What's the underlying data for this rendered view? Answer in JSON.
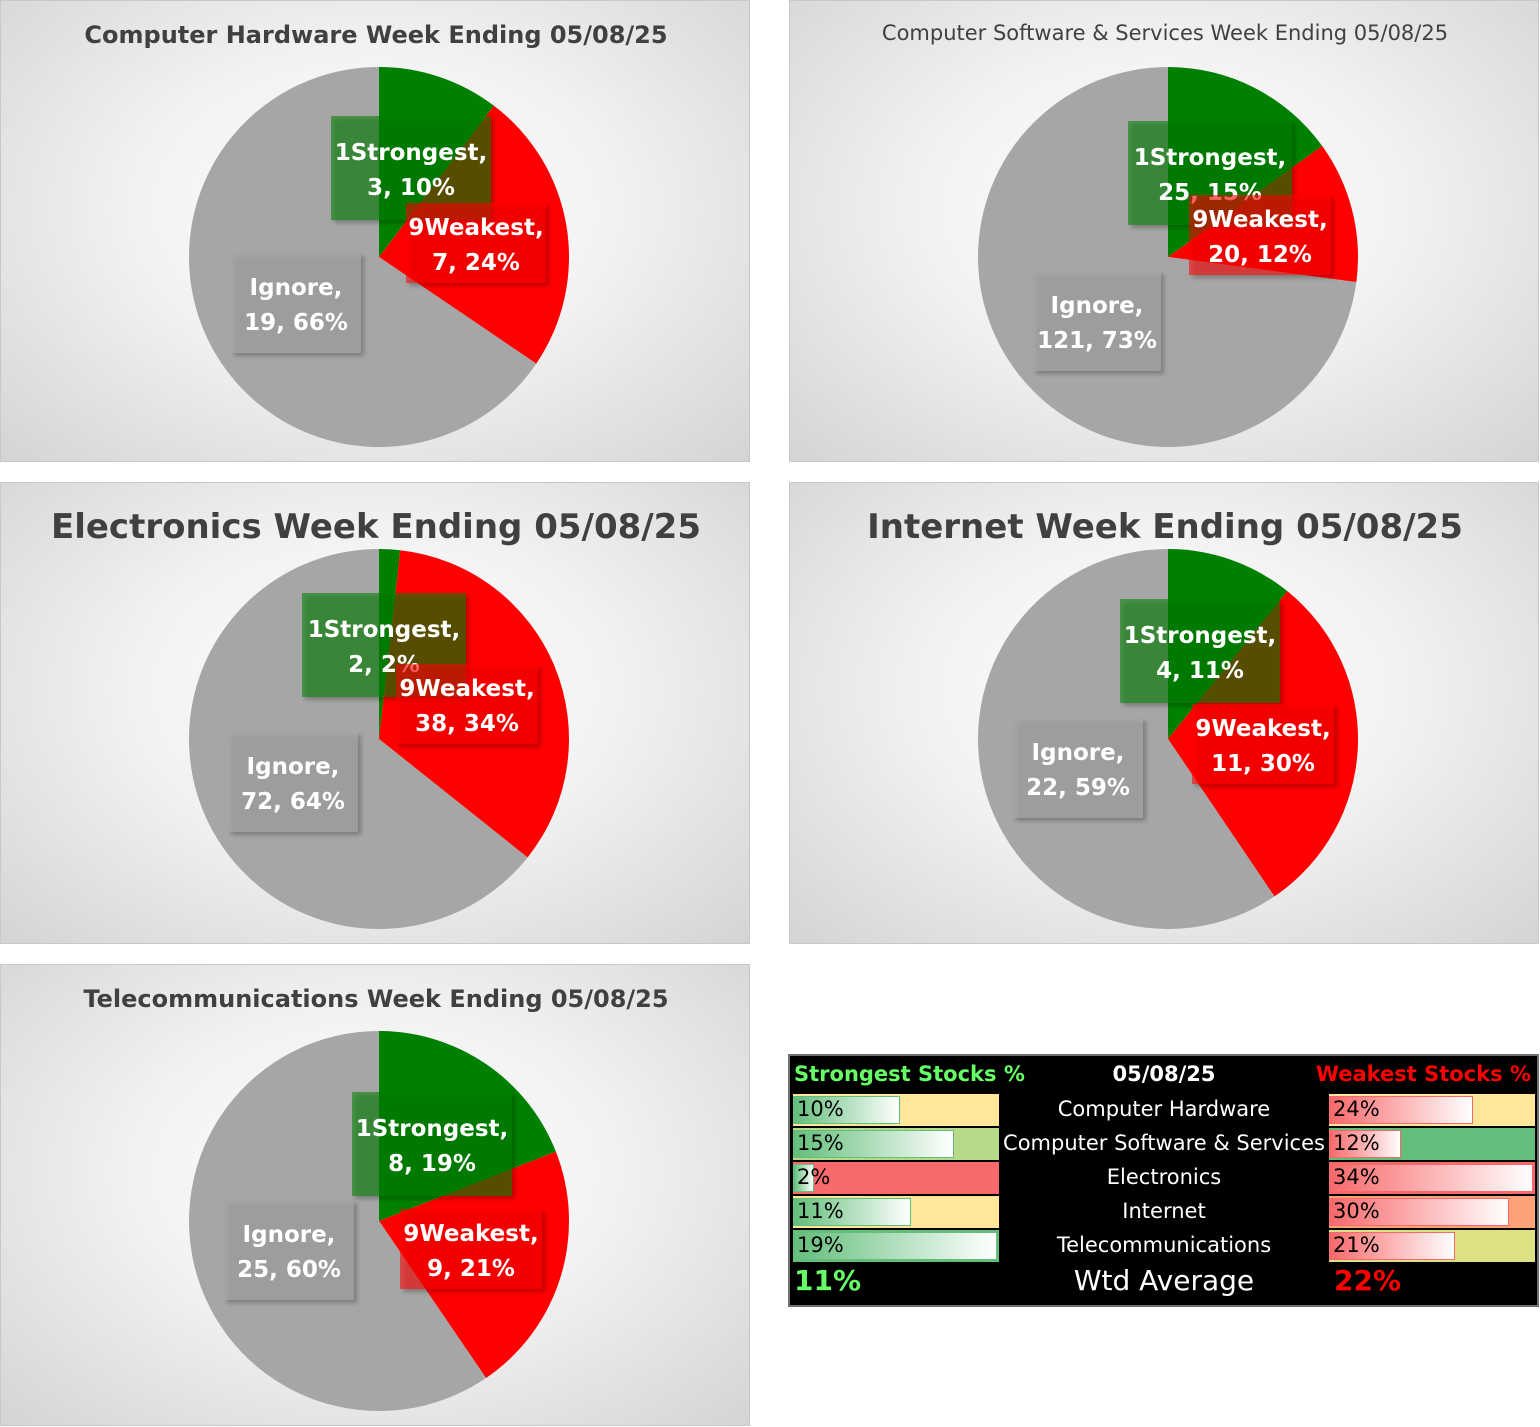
{
  "chart_data": [
    {
      "type": "pie",
      "title": "Computer Hardware Week Ending 05/08/25",
      "slices": [
        {
          "name": "1Strongest",
          "value": 3,
          "percent": "10%",
          "color": "#008000"
        },
        {
          "name": "9Weakest",
          "value": 7,
          "percent": "24%",
          "color": "#ff0000"
        },
        {
          "name": "Ignore",
          "value": 19,
          "percent": "66%",
          "color": "#a6a6a6"
        }
      ]
    },
    {
      "type": "pie",
      "title": "Computer Software & Services Week Ending 05/08/25",
      "slices": [
        {
          "name": "1Strongest",
          "value": 25,
          "percent": "15%",
          "color": "#008000"
        },
        {
          "name": "9Weakest",
          "value": 20,
          "percent": "12%",
          "color": "#ff0000"
        },
        {
          "name": "Ignore",
          "value": 121,
          "percent": "73%",
          "color": "#a6a6a6"
        }
      ]
    },
    {
      "type": "pie",
      "title": "Electronics Week Ending 05/08/25",
      "slices": [
        {
          "name": "1Strongest",
          "value": 2,
          "percent": "2%",
          "color": "#008000"
        },
        {
          "name": "9Weakest",
          "value": 38,
          "percent": "34%",
          "color": "#ff0000"
        },
        {
          "name": "Ignore",
          "value": 72,
          "percent": "64%",
          "color": "#a6a6a6"
        }
      ]
    },
    {
      "type": "pie",
      "title": "Internet Week Ending 05/08/25",
      "slices": [
        {
          "name": "1Strongest",
          "value": 4,
          "percent": "11%",
          "color": "#008000"
        },
        {
          "name": "9Weakest",
          "value": 11,
          "percent": "30%",
          "color": "#ff0000"
        },
        {
          "name": "Ignore",
          "value": 22,
          "percent": "59%",
          "color": "#a6a6a6"
        }
      ]
    },
    {
      "type": "pie",
      "title": "Telecommunications Week Ending 05/08/25",
      "slices": [
        {
          "name": "1Strongest",
          "value": 8,
          "percent": "19%",
          "color": "#008000"
        },
        {
          "name": "9Weakest",
          "value": 9,
          "percent": "21%",
          "color": "#ff0000"
        },
        {
          "name": "Ignore",
          "value": 25,
          "percent": "60%",
          "color": "#a6a6a6"
        }
      ]
    },
    {
      "type": "table",
      "header": {
        "strongest": "Strongest Stocks %",
        "date": "05/08/25",
        "weakest": "Weakest Stocks %"
      },
      "rows": [
        {
          "name": "Computer Hardware",
          "strongest": "10%",
          "strongest_value": 0.1,
          "weakest": "24%",
          "weakest_value": 0.24,
          "strongest_fill": "#ffe699",
          "weakest_fill": "#ffe699"
        },
        {
          "name": "Computer Software & Services",
          "strongest": "15%",
          "strongest_value": 0.15,
          "weakest": "12%",
          "weakest_value": 0.12,
          "strongest_fill": "#b6d98a",
          "weakest_fill": "#63be7b"
        },
        {
          "name": "Electronics",
          "strongest": "2%",
          "strongest_value": 0.02,
          "weakest": "34%",
          "weakest_value": 0.34,
          "strongest_fill": "#f8696b",
          "weakest_fill": "#f8696b"
        },
        {
          "name": "Internet",
          "strongest": "11%",
          "strongest_value": 0.11,
          "weakest": "30%",
          "weakest_value": 0.3,
          "strongest_fill": "#ffe699",
          "weakest_fill": "#fba276"
        },
        {
          "name": "Telecommunications",
          "strongest": "19%",
          "strongest_value": 0.19,
          "weakest": "21%",
          "weakest_value": 0.21,
          "strongest_fill": "#63be7b",
          "weakest_fill": "#dde083"
        }
      ],
      "footer": {
        "strongest": "11%",
        "label": "Wtd Average",
        "weakest": "22%"
      },
      "colors": {
        "strongest_header": "#66ff66",
        "weakest_header": "#ff0000",
        "strongest_avg": "#66ff66",
        "weakest_avg": "#ff0000"
      }
    }
  ]
}
